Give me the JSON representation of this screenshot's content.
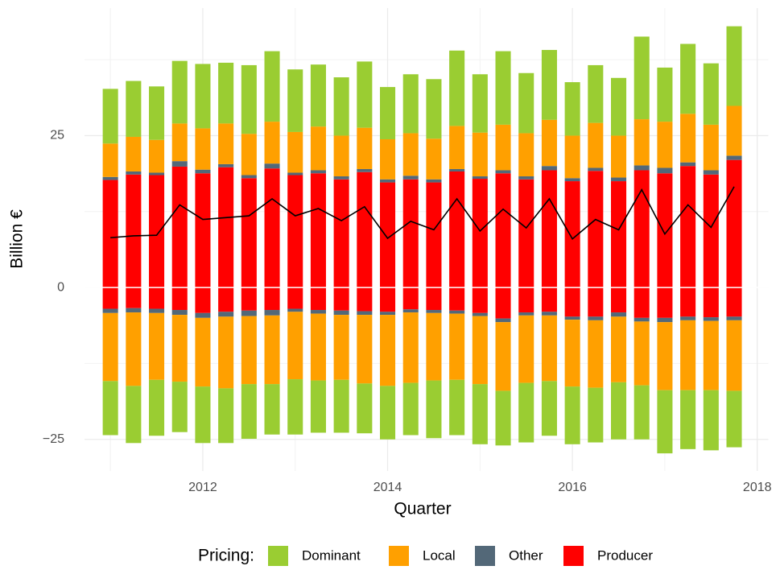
{
  "chart_data": {
    "type": "stacked_bar",
    "x_label": "Quarter",
    "y_label": "Billion €",
    "legend_title": "Pricing:",
    "legend_position": "bottom",
    "grid": true,
    "x": [
      2011,
      2011.25,
      2011.5,
      2011.75,
      2012,
      2012.25,
      2012.5,
      2012.75,
      2013,
      2013.25,
      2013.5,
      2013.75,
      2014,
      2014.25,
      2014.5,
      2014.75,
      2015,
      2015.25,
      2015.5,
      2015.75,
      2016,
      2016.25,
      2016.5,
      2016.75,
      2017,
      2017.25,
      2017.5,
      2017.75
    ],
    "xlim": [
      2010.72,
      2018.12
    ],
    "xticks": [
      2012,
      2014,
      2016,
      2018
    ],
    "x_minor_ticks": [
      2011,
      2013,
      2015,
      2017
    ],
    "ylim": [
      -30.2,
      46
    ],
    "yticks": [
      {
        "value": -25,
        "label": "−25"
      },
      0,
      25
    ],
    "y_minor_ticks": [
      -12.5,
      12.5,
      37.5
    ],
    "series": [
      {
        "name": "Dominant",
        "color": "#9acd32",
        "values": [
          9.0,
          9.2,
          8.8,
          10.3,
          10.6,
          10.0,
          11.3,
          11.6,
          10.3,
          10.2,
          9.6,
          10.9,
          8.6,
          9.7,
          9.8,
          12.4,
          9.6,
          12.1,
          9.9,
          11.5,
          8.8,
          9.5,
          9.5,
          13.6,
          8.9,
          11.5,
          10.1,
          13.1
        ],
        "negative_values": [
          -8.9,
          -9.4,
          -9.2,
          -8.3,
          -9.3,
          -9.0,
          -9.0,
          -8.3,
          -9.1,
          -8.6,
          -8.7,
          -8.2,
          -8.8,
          -8.6,
          -9.5,
          -9.1,
          -9.9,
          -9.0,
          -9.8,
          -9.0,
          -9.5,
          -9.0,
          -9.4,
          -8.9,
          -10.4,
          -9.7,
          -9.9,
          -9.3
        ]
      },
      {
        "name": "Local",
        "color": "#ffa000",
        "values": [
          5.5,
          5.7,
          5.4,
          6.2,
          6.8,
          6.7,
          6.8,
          6.9,
          6.7,
          7.2,
          6.7,
          6.8,
          6.6,
          7.0,
          6.7,
          7.1,
          7.2,
          7.5,
          7.1,
          7.6,
          7.0,
          7.4,
          6.9,
          7.6,
          7.6,
          8.0,
          7.5,
          8.2
        ],
        "negative_values": [
          -11.2,
          -12.1,
          -11.0,
          -11.0,
          -11.3,
          -11.8,
          -11.2,
          -11.3,
          -11.1,
          -11.0,
          -10.7,
          -11.3,
          -11.7,
          -11.6,
          -11.1,
          -10.9,
          -11.2,
          -11.3,
          -11.1,
          -10.8,
          -11.0,
          -11.1,
          -10.8,
          -10.5,
          -11.2,
          -11.5,
          -11.4,
          -11.6
        ]
      },
      {
        "name": "Other",
        "color": "#536878",
        "values": [
          0.5,
          0.5,
          0.4,
          0.9,
          0.6,
          0.5,
          0.5,
          0.8,
          0.4,
          0.5,
          0.5,
          0.5,
          0.5,
          0.6,
          0.5,
          0.4,
          0.4,
          0.5,
          0.5,
          0.7,
          0.5,
          0.5,
          0.6,
          0.8,
          0.9,
          0.6,
          0.7,
          0.7
        ],
        "negative_values": [
          -0.7,
          -0.7,
          -0.7,
          -0.8,
          -0.8,
          -0.8,
          -0.9,
          -0.9,
          -0.5,
          -0.6,
          -0.7,
          -0.6,
          -0.5,
          -0.5,
          -0.5,
          -0.5,
          -0.5,
          -0.6,
          -0.5,
          -0.6,
          -0.5,
          -0.6,
          -0.7,
          -0.6,
          -0.7,
          -0.6,
          -0.6,
          -0.6
        ]
      },
      {
        "name": "Producer",
        "color": "#ff0000",
        "values": [
          17.7,
          18.6,
          18.5,
          19.9,
          18.8,
          19.8,
          18.0,
          19.6,
          18.5,
          18.8,
          17.8,
          19.0,
          17.3,
          17.8,
          17.3,
          19.1,
          17.9,
          18.8,
          17.8,
          19.3,
          17.5,
          19.2,
          17.5,
          19.3,
          18.8,
          20.0,
          18.6,
          21.0
        ],
        "negative_values": [
          -3.5,
          -3.4,
          -3.5,
          -3.7,
          -4.2,
          -4.0,
          -3.8,
          -3.7,
          -3.5,
          -3.7,
          -3.8,
          -3.9,
          -4.0,
          -3.6,
          -3.7,
          -3.8,
          -4.2,
          -5.1,
          -4.1,
          -4.0,
          -4.8,
          -4.8,
          -4.1,
          -5.0,
          -5.0,
          -4.8,
          -4.9,
          -4.8
        ]
      }
    ],
    "net_line": {
      "color": "#000000",
      "values": [
        8.2,
        8.5,
        8.6,
        13.6,
        11.2,
        11.5,
        11.8,
        14.6,
        11.8,
        13.0,
        11.0,
        13.3,
        8.1,
        10.9,
        9.5,
        14.6,
        9.3,
        12.9,
        9.8,
        14.6,
        8.0,
        11.2,
        9.5,
        16.1,
        8.8,
        13.6,
        9.9,
        16.6
      ]
    }
  }
}
